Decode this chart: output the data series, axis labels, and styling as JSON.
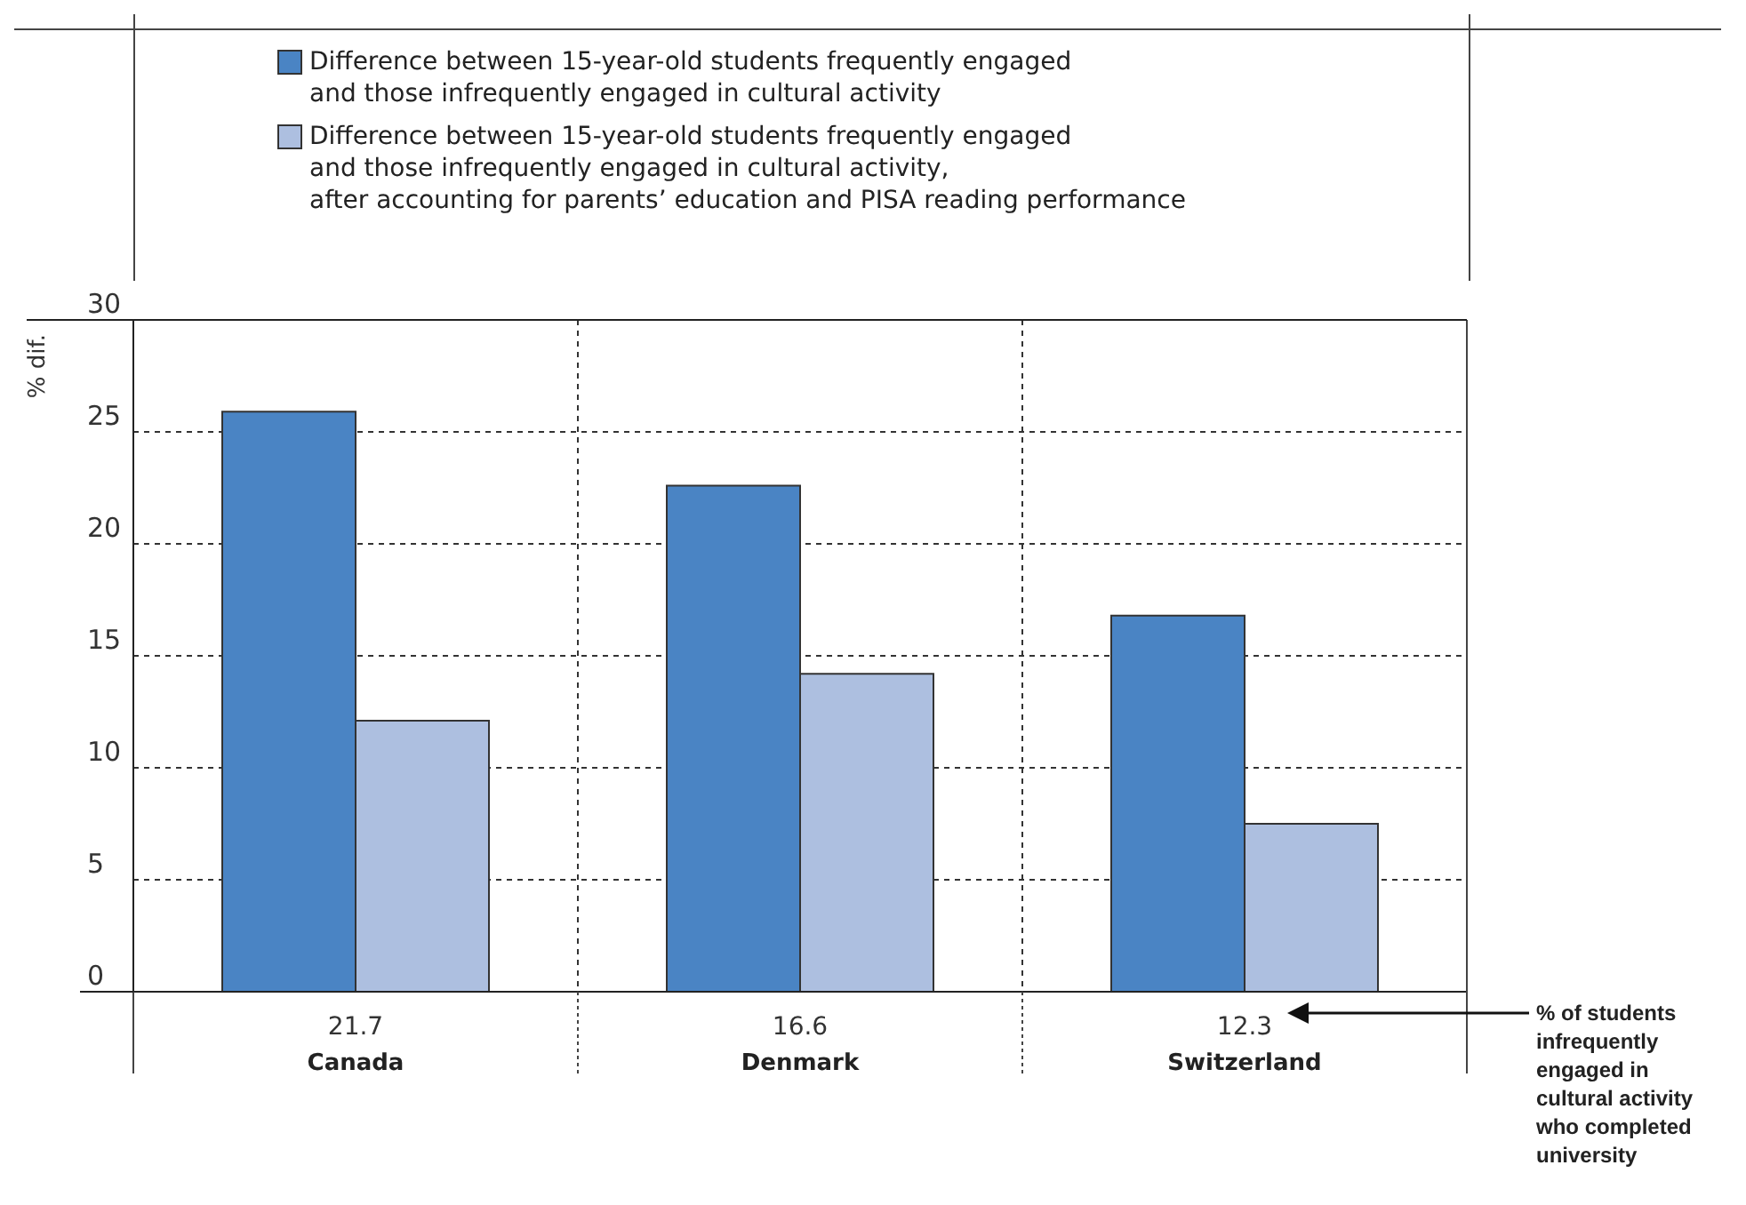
{
  "chart_data": {
    "type": "bar",
    "ylabel": "% dif.",
    "categories": [
      "Canada",
      "Denmark",
      "Switzerland"
    ],
    "series": [
      {
        "name": "Difference between 15-year-old students frequently engaged\nand those infrequently engaged in cultural activity",
        "color": "#4a84c4",
        "values": [
          25.9,
          22.6,
          16.8
        ]
      },
      {
        "name": "Difference between 15-year-old students frequently engaged\nand those infrequently engaged in cultural activity,\nafter accounting for parents’ education and PISA reading performance",
        "color": "#adbfe0",
        "values": [
          12.1,
          14.2,
          7.5
        ]
      }
    ],
    "ylim": [
      0,
      30
    ],
    "yticks": [
      0,
      5,
      10,
      15,
      20,
      25,
      30
    ],
    "grid": true,
    "legend": "top",
    "annotations": [
      "21.7",
      "16.6",
      "12.3",
      "% of students\ninfrequently\nengaged in\ncultural activity\nwho completed\nuniversity"
    ]
  }
}
